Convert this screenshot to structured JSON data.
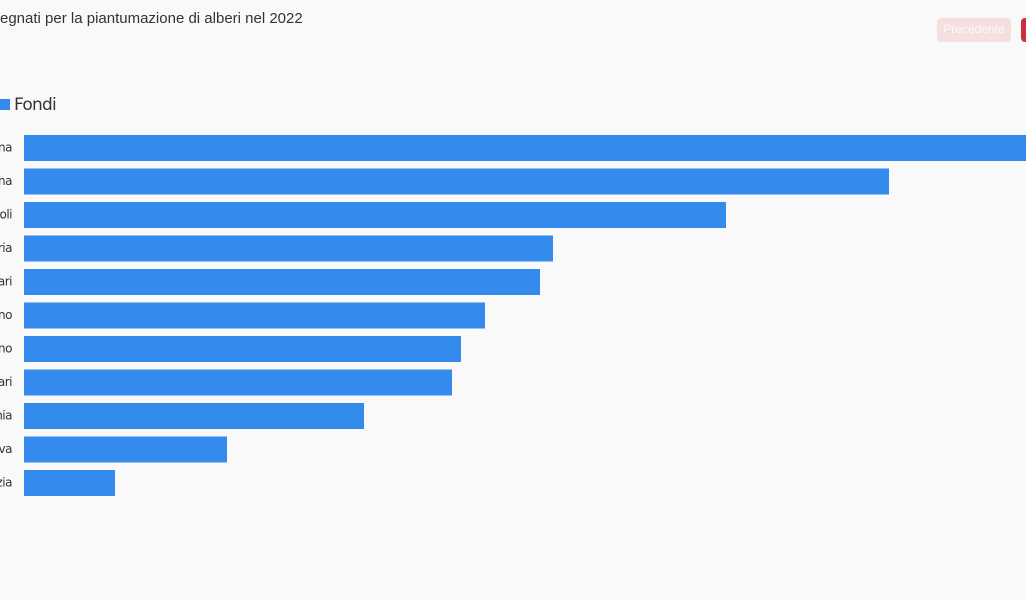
{
  "chart_data": {
    "type": "hbar",
    "title": "egnati per la piantumazione di alberi nel 2022",
    "buttons": [
      "Precedente"
    ],
    "series": [
      {
        "name": "Fondi",
        "color": "#348bed",
        "values": [
          1002,
          865,
          702,
          529,
          516,
          461,
          437,
          428,
          340,
          203,
          91
        ]
      }
    ],
    "categories": [
      "na",
      "na",
      "oli",
      "ria",
      "ari",
      "no",
      "no",
      "ari",
      "nia",
      "va",
      "zia"
    ],
    "xlim": [
      0,
      1002
    ]
  }
}
